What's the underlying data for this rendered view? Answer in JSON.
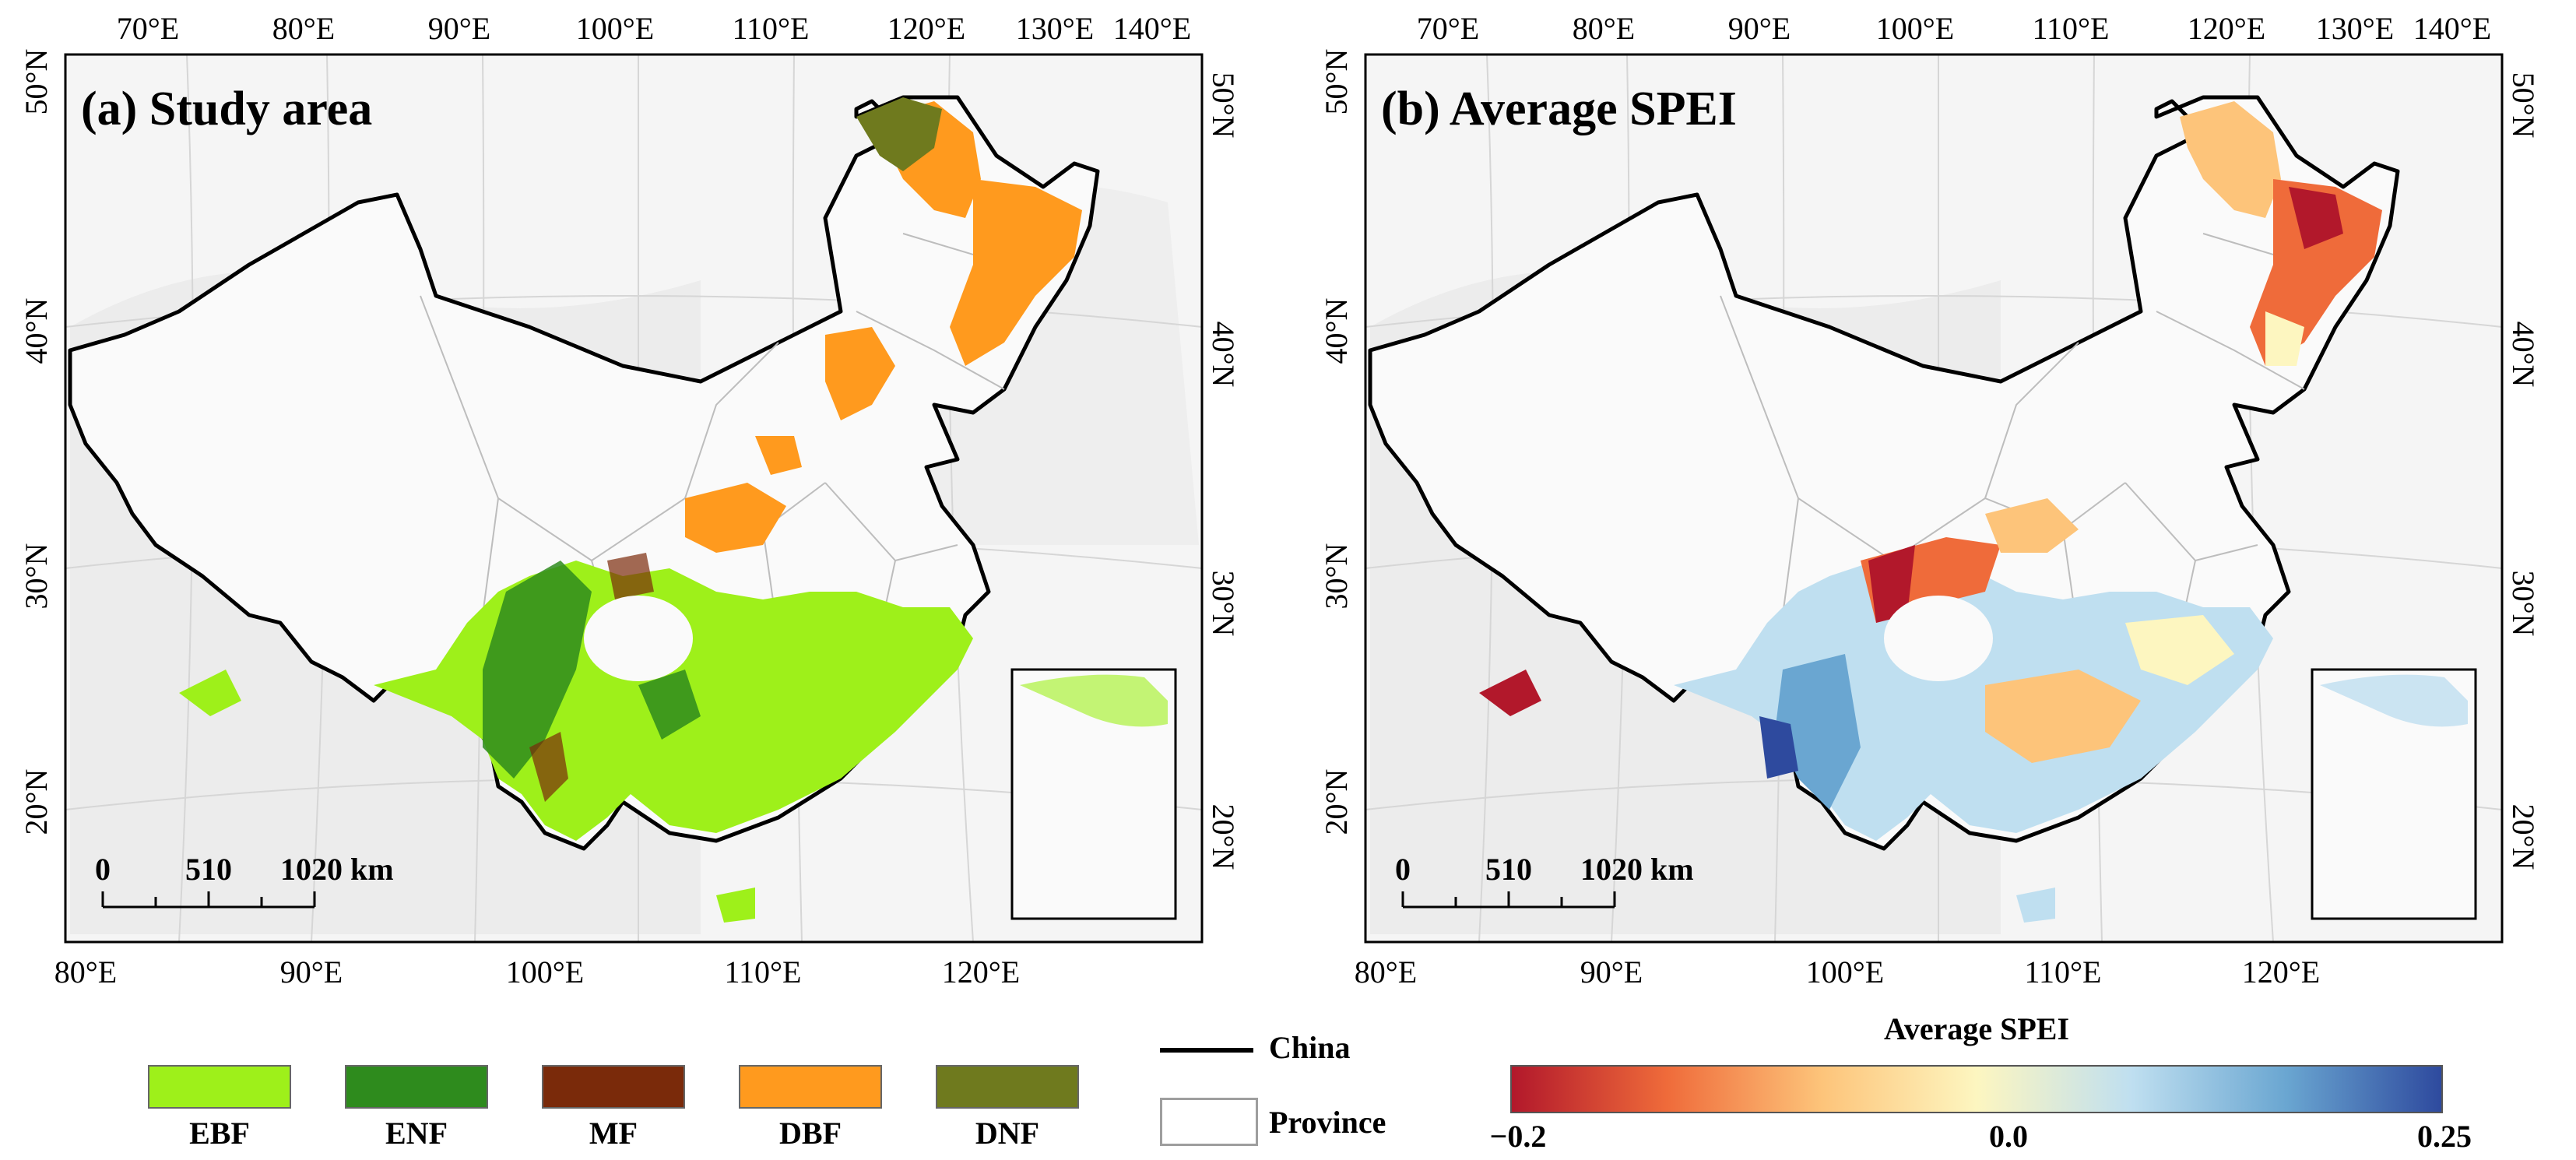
{
  "panel_a": {
    "title": "(a) Study area",
    "top_lon_labels": [
      "70°E",
      "80°E",
      "90°E",
      "100°E",
      "110°E",
      "120°E",
      "130°E",
      "140°E"
    ],
    "bottom_lon_labels": [
      "80°E",
      "90°E",
      "100°E",
      "110°E",
      "120°E"
    ],
    "left_lat_labels": [
      "50°N",
      "40°N",
      "30°N",
      "20°N"
    ],
    "right_lat_labels": [
      "50°N",
      "40°N",
      "30°N",
      "20°N"
    ],
    "scalebar": {
      "l0": "0",
      "l1": "510",
      "l2": "1020 km"
    }
  },
  "panel_b": {
    "title": "(b) Average SPEI",
    "top_lon_labels": [
      "70°E",
      "80°E",
      "90°E",
      "100°E",
      "110°E",
      "120°E",
      "130°E",
      "140°E"
    ],
    "bottom_lon_labels": [
      "80°E",
      "90°E",
      "100°E",
      "110°E",
      "120°E"
    ],
    "left_lat_labels": [
      "50°N",
      "40°N",
      "30°N",
      "20°N"
    ],
    "right_lat_labels": [
      "50°N",
      "40°N",
      "30°N",
      "20°N"
    ],
    "scalebar": {
      "l0": "0",
      "l1": "510",
      "l2": "1020 km"
    }
  },
  "forest_legend": [
    {
      "label": "EBF",
      "color": "#9ef01a"
    },
    {
      "label": "ENF",
      "color": "#2e8b1d"
    },
    {
      "label": "MF",
      "color": "#7a2a0a"
    },
    {
      "label": "DBF",
      "color": "#ff9a1e"
    },
    {
      "label": "DNF",
      "color": "#6f7a1e"
    }
  ],
  "boundary_legend": {
    "china": "China",
    "province": "Province"
  },
  "spei_legend": {
    "title": "Average SPEI",
    "min": "−0.2",
    "mid": "0.0",
    "max": "0.25",
    "colors": [
      "#b2182b",
      "#ef6b3a",
      "#fdc47a",
      "#fdf6c0",
      "#bfdff0",
      "#6aa6d1",
      "#2e4a9e"
    ]
  }
}
